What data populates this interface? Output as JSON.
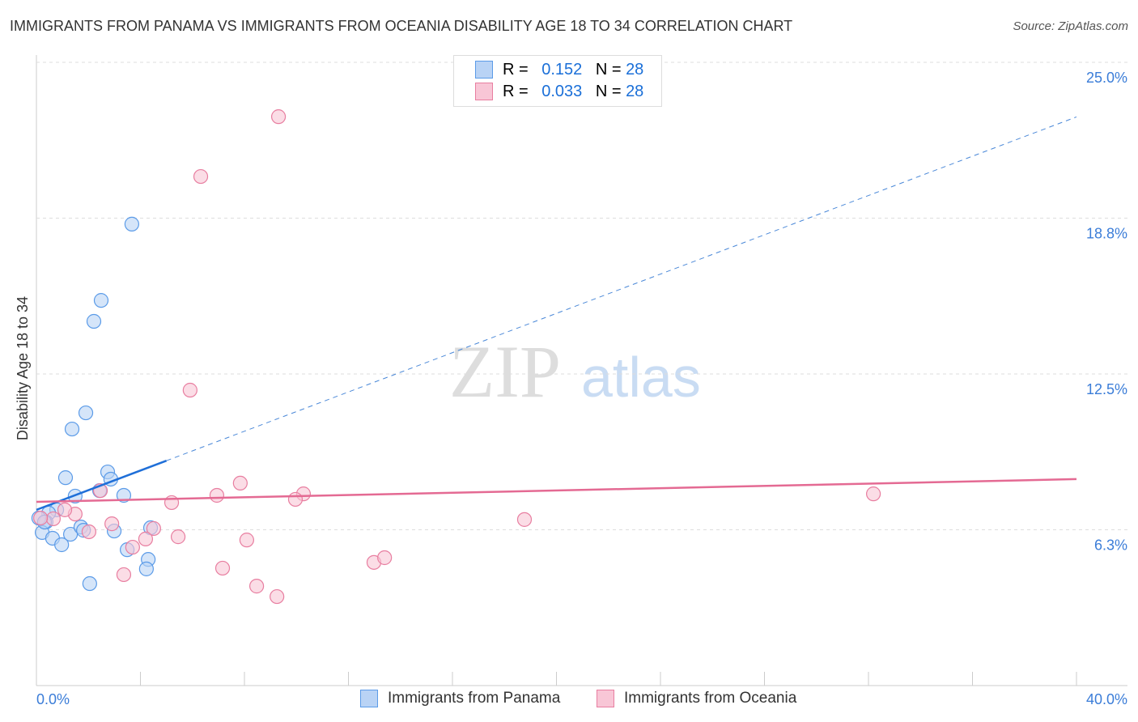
{
  "title": "IMMIGRANTS FROM PANAMA VS IMMIGRANTS FROM OCEANIA DISABILITY AGE 18 TO 34 CORRELATION CHART",
  "source": "Source: ZipAtlas.com",
  "watermark": "ZIPatlas",
  "legend": [
    {
      "r_label": "R =",
      "r": "0.152",
      "n_label": "N =",
      "n": "28"
    },
    {
      "r_label": "R =",
      "r": "0.033",
      "n_label": "N =",
      "n": "28"
    }
  ],
  "chart_data": {
    "type": "scatter",
    "title": "IMMIGRANTS FROM PANAMA VS IMMIGRANTS FROM OCEANIA DISABILITY AGE 18 TO 34 CORRELATION CHART",
    "ylabel": "Disability Age 18 to 34",
    "xlim": [
      0,
      40
    ],
    "ylim": [
      0,
      25
    ],
    "x_tick_labels": [
      "0.0%",
      "40.0%"
    ],
    "y_ticks": [
      6.25,
      12.5,
      18.75,
      25
    ],
    "y_tick_labels": [
      "6.3%",
      "12.5%",
      "18.8%",
      "25.0%"
    ],
    "grid": true,
    "legend_placement": "top-center",
    "series": [
      {
        "name": "Immigrants from Panama",
        "color": "#5b9be8",
        "fill": "#b9d3f5",
        "R": 0.152,
        "N": 28,
        "trend": {
          "intercept": 7.05,
          "slope": 0.394,
          "solid_until": 5.0
        },
        "points": [
          [
            3.67,
            18.51
          ],
          [
            2.49,
            15.45
          ],
          [
            2.21,
            14.61
          ],
          [
            1.9,
            10.94
          ],
          [
            1.37,
            10.29
          ],
          [
            1.12,
            8.34
          ],
          [
            2.74,
            8.57
          ],
          [
            2.86,
            8.28
          ],
          [
            1.49,
            7.6
          ],
          [
            2.43,
            7.82
          ],
          [
            3.36,
            7.63
          ],
          [
            0.78,
            7.05
          ],
          [
            0.47,
            6.92
          ],
          [
            0.37,
            6.56
          ],
          [
            0.22,
            6.14
          ],
          [
            0.62,
            5.91
          ],
          [
            0.97,
            5.65
          ],
          [
            1.31,
            6.07
          ],
          [
            1.71,
            6.36
          ],
          [
            1.81,
            6.23
          ],
          [
            2.99,
            6.2
          ],
          [
            3.49,
            5.45
          ],
          [
            4.39,
            6.33
          ],
          [
            4.3,
            5.06
          ],
          [
            4.23,
            4.68
          ],
          [
            2.05,
            4.09
          ],
          [
            0.09,
            6.72
          ],
          [
            0.31,
            6.56
          ]
        ]
      },
      {
        "name": "Immigrants from Oceania",
        "color": "#e87ea0",
        "fill": "#f8c6d6",
        "R": 0.033,
        "N": 28,
        "trend": {
          "intercept": 7.37,
          "slope": 0.0228
        },
        "points": [
          [
            9.31,
            22.82
          ],
          [
            6.32,
            20.42
          ],
          [
            5.91,
            11.85
          ],
          [
            7.84,
            8.12
          ],
          [
            6.94,
            7.63
          ],
          [
            10.27,
            7.69
          ],
          [
            9.96,
            7.47
          ],
          [
            5.2,
            7.34
          ],
          [
            2.46,
            7.82
          ],
          [
            1.49,
            6.88
          ],
          [
            1.09,
            7.05
          ],
          [
            0.65,
            6.69
          ],
          [
            0.16,
            6.72
          ],
          [
            2.9,
            6.49
          ],
          [
            4.51,
            6.3
          ],
          [
            2.02,
            6.17
          ],
          [
            4.2,
            5.88
          ],
          [
            3.7,
            5.55
          ],
          [
            5.45,
            5.97
          ],
          [
            8.09,
            5.84
          ],
          [
            7.16,
            4.71
          ],
          [
            8.47,
            3.99
          ],
          [
            9.25,
            3.57
          ],
          [
            3.36,
            4.45
          ],
          [
            12.98,
            4.94
          ],
          [
            13.39,
            5.13
          ],
          [
            18.77,
            6.66
          ],
          [
            32.19,
            7.69
          ]
        ]
      }
    ]
  }
}
